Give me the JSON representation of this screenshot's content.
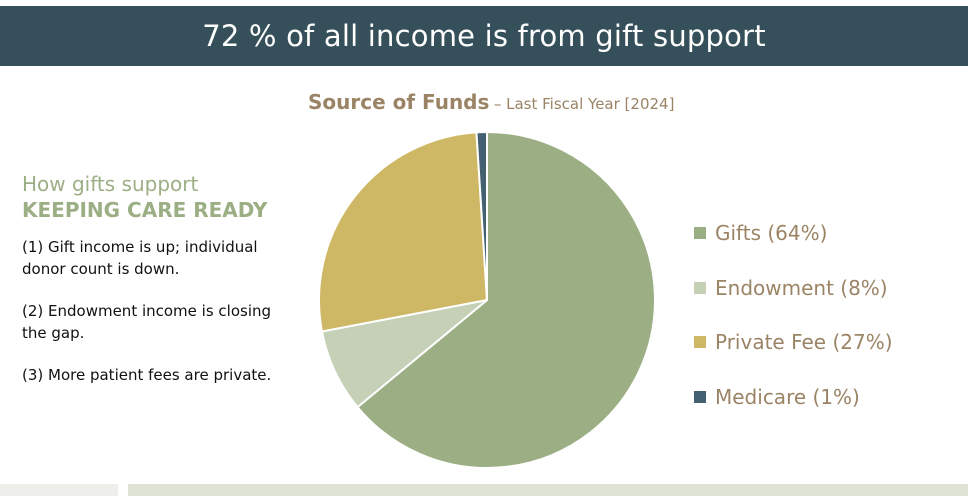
{
  "banner": {
    "headline": "72 % of all income is from gift support"
  },
  "sidebar": {
    "heading_line1": "How gifts support",
    "heading_line2": "KEEPING CARE READY",
    "notes": [
      "(1) Gift income is up; individual donor count is down.",
      "(2) Endowment income is closing the gap.",
      "(3) More patient fees are private."
    ]
  },
  "chart_data": {
    "type": "pie",
    "title": "Source of Funds",
    "subtitle": "– Last Fiscal Year [2024]",
    "slices": [
      {
        "label": "Gifts",
        "value": 64,
        "legend": "Gifts (64%)",
        "color": "#9caf84"
      },
      {
        "label": "Endowment",
        "value": 8,
        "legend": "Endowment (8%)",
        "color": "#c5d0b7"
      },
      {
        "label": "Private Fee",
        "value": 27,
        "legend": "Private Fee (27%)",
        "color": "#cfb865"
      },
      {
        "label": "Medicare",
        "value": 1,
        "legend": "Medicare (1%)",
        "color": "#436170"
      }
    ],
    "start_angle_deg": 0,
    "direction": "clockwise",
    "legend_position": "right"
  }
}
